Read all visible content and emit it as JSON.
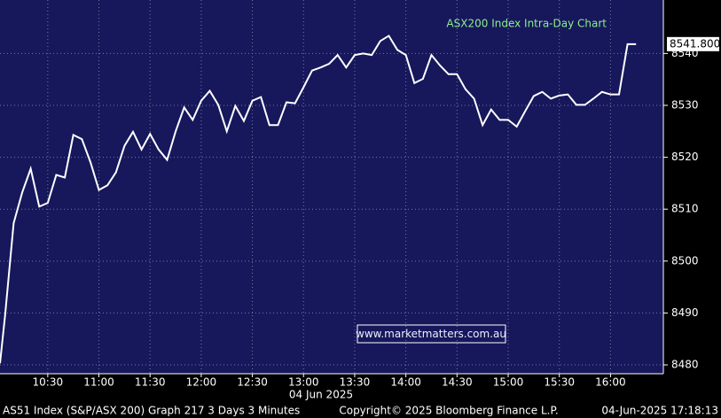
{
  "chart_data": {
    "type": "line",
    "title": "ASX200 Index Intra-Day Chart",
    "watermark": "www.marketmatters.com.au",
    "x_label": "04 Jun 2025",
    "footer_left": "AS51 Index (S&P/ASX 200) Graph 217 3 Days 3 Minutes",
    "footer_center": "Copyright© 2025 Bloomberg Finance L.P.",
    "footer_right": "04-Jun-2025 17:18:13",
    "x": [
      "10:02",
      "10:05",
      "10:10",
      "10:15",
      "10:20",
      "10:25",
      "10:30",
      "10:35",
      "10:40",
      "10:45",
      "10:50",
      "10:55",
      "11:00",
      "11:05",
      "11:10",
      "11:15",
      "11:20",
      "11:25",
      "11:30",
      "11:35",
      "11:40",
      "11:45",
      "11:50",
      "11:55",
      "12:00",
      "12:05",
      "12:10",
      "12:15",
      "12:20",
      "12:25",
      "12:30",
      "12:35",
      "12:40",
      "12:45",
      "12:50",
      "12:55",
      "13:00",
      "13:05",
      "13:10",
      "13:15",
      "13:20",
      "13:25",
      "13:30",
      "13:35",
      "13:40",
      "13:45",
      "13:50",
      "13:55",
      "14:00",
      "14:05",
      "14:10",
      "14:15",
      "14:20",
      "14:25",
      "14:30",
      "14:35",
      "14:40",
      "14:45",
      "14:50",
      "14:55",
      "15:00",
      "15:05",
      "15:10",
      "15:15",
      "15:20",
      "15:25",
      "15:30",
      "15:35",
      "15:40",
      "15:45",
      "15:50",
      "15:55",
      "16:00",
      "16:05",
      "16:10",
      "16:15"
    ],
    "series": [
      {
        "name": "AS51 Index",
        "color": "#ffffff",
        "values": [
          8480.3,
          8489.6,
          8507.3,
          8513.2,
          8517.8,
          8510.5,
          8511.2,
          8516.6,
          8516.1,
          8524.3,
          8523.5,
          8519.1,
          8513.7,
          8514.6,
          8517.1,
          8522.2,
          8524.9,
          8521.5,
          8524.5,
          8521.5,
          8519.5,
          8525,
          8529.6,
          8527.2,
          8530.9,
          8532.8,
          8530.1,
          8525,
          8529.9,
          8527,
          8530.9,
          8531.6,
          8526.2,
          8526.2,
          8530.6,
          8530.4,
          8533.5,
          8536.7,
          8537.3,
          8538,
          8539.7,
          8537.3,
          8539.7,
          8540,
          8539.7,
          8542.4,
          8543.4,
          8540.7,
          8539.7,
          8534.3,
          8535.1,
          8539.7,
          8537.7,
          8536,
          8536,
          8533.1,
          8531.3,
          8526.2,
          8529.2,
          8527.2,
          8527.2,
          8525.9,
          8528.9,
          8531.8,
          8532.6,
          8531.3,
          8531.9,
          8532.1,
          8530.1,
          8530.1,
          8531.3,
          8532.6,
          8532.1,
          8532.1,
          8541.8,
          8541.8
        ]
      }
    ],
    "last_price": {
      "value": 8541.8,
      "label": "8541.800"
    },
    "xlim": [
      "10:02",
      "16:31"
    ],
    "xticks": [
      "10:30",
      "11:00",
      "11:30",
      "12:00",
      "12:30",
      "13:00",
      "13:30",
      "14:00",
      "14:30",
      "15:00",
      "15:30",
      "16:00"
    ],
    "ylim": [
      8478.3,
      8550.3
    ],
    "yticks": [
      8480,
      8490,
      8500,
      8510,
      8520,
      8530,
      8540
    ],
    "grid": true
  }
}
